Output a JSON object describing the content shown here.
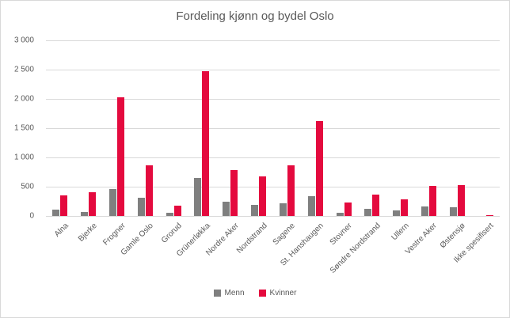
{
  "chart_data": {
    "type": "bar",
    "title": "Fordeling kjønn og bydel Oslo",
    "categories": [
      "Alna",
      "Bjerke",
      "Frogner",
      "Gamle Oslo",
      "Grorud",
      "Grünerløkka",
      "Nordre Aker",
      "Nordstrand",
      "Sagene",
      "St. Hanshaugen",
      "Stovner",
      "Søndre Nordstrand",
      "Ullern",
      "Vestre Aker",
      "Østensjø",
      "Ikke spesifisert"
    ],
    "series": [
      {
        "name": "Menn",
        "color": "#7f7f7f",
        "values": [
          110,
          70,
          460,
          310,
          60,
          650,
          250,
          190,
          210,
          340,
          60,
          120,
          100,
          160,
          150,
          0
        ]
      },
      {
        "name": "Kvinner",
        "color": "#e40a3e",
        "values": [
          350,
          410,
          2030,
          870,
          170,
          2470,
          780,
          680,
          870,
          1620,
          230,
          360,
          290,
          520,
          530,
          20
        ]
      }
    ],
    "xlabel": "",
    "ylabel": "",
    "ylim": [
      0,
      3000
    ],
    "ytick_step": 500,
    "ytick_labels": [
      "0",
      "500",
      "1 000",
      "1 500",
      "2 000",
      "2 500",
      "3 000"
    ],
    "grid": true,
    "legend_position": "bottom",
    "colors": {
      "title_text": "#595959",
      "axis_text": "#595959",
      "gridline": "#d9d9d9",
      "frame_border": "#d9d9d9",
      "background": "#ffffff"
    }
  }
}
